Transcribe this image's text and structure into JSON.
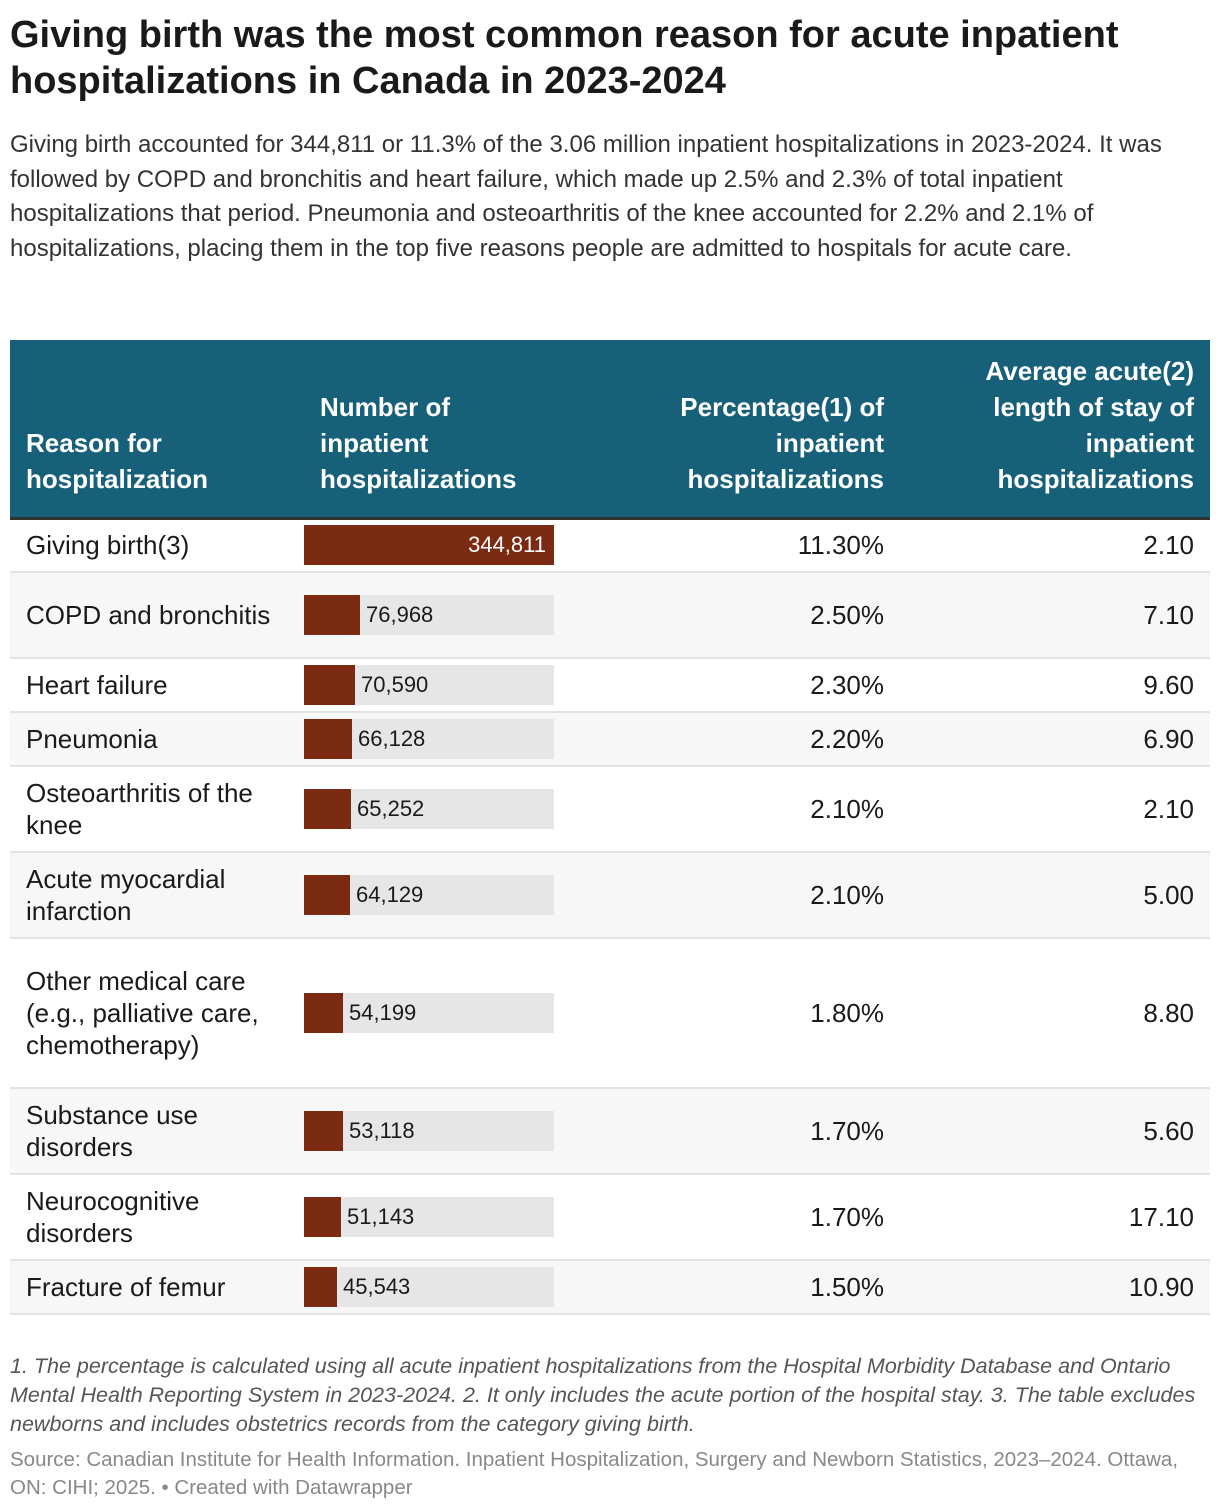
{
  "title": "Giving birth was the most common reason for acute inpatient hospitalizations in Canada in 2023-2024",
  "subtitle": "Giving birth accounted for 344,811 or 11.3% of the 3.06 million inpatient hospitalizations in 2023-2024. It was followed by COPD and bronchitis and heart failure, which made up 2.5% and 2.3% of total inpatient hospitalizations that period. Pneumonia and osteoarthritis of the knee accounted for 2.2% and 2.1% of hospitalizations, placing them in the top five reasons people are admitted to hospitals for acute care.",
  "columns": {
    "reason": "Reason for hospitalization",
    "number": "Number of inpatient hospitalizations",
    "percentage": "Percentage(1) of inpatient hospitalizations",
    "stay": "Average acute(2) length of stay of inpatient hospitalizations"
  },
  "colors": {
    "header_bg": "#17607a",
    "bar": "#7b2b12",
    "track": "#e6e6e6"
  },
  "chart_data": {
    "type": "table",
    "title": "Giving birth was the most common reason for acute inpatient hospitalizations in Canada in 2023-2024",
    "bar_max": 344811,
    "rows": [
      {
        "reason": "Giving birth(3)",
        "number": 344811,
        "number_label": "344,811",
        "percentage": "11.30%",
        "stay": "2.10"
      },
      {
        "reason": "COPD and bronchitis",
        "number": 76968,
        "number_label": "76,968",
        "percentage": "2.50%",
        "stay": "7.10"
      },
      {
        "reason": "Heart failure",
        "number": 70590,
        "number_label": "70,590",
        "percentage": "2.30%",
        "stay": "9.60"
      },
      {
        "reason": "Pneumonia",
        "number": 66128,
        "number_label": "66,128",
        "percentage": "2.20%",
        "stay": "6.90"
      },
      {
        "reason": "Osteoarthritis of the knee",
        "number": 65252,
        "number_label": "65,252",
        "percentage": "2.10%",
        "stay": "2.10"
      },
      {
        "reason": "Acute myocardial infarction",
        "number": 64129,
        "number_label": "64,129",
        "percentage": "2.10%",
        "stay": "5.00"
      },
      {
        "reason": "Other medical care (e.g., palliative care, chemotherapy)",
        "number": 54199,
        "number_label": "54,199",
        "percentage": "1.80%",
        "stay": "8.80"
      },
      {
        "reason": "Substance use disorders",
        "number": 53118,
        "number_label": "53,118",
        "percentage": "1.70%",
        "stay": "5.60"
      },
      {
        "reason": "Neurocognitive disorders",
        "number": 51143,
        "number_label": "51,143",
        "percentage": "1.70%",
        "stay": "17.10"
      },
      {
        "reason": "Fracture of femur",
        "number": 45543,
        "number_label": "45,543",
        "percentage": "1.50%",
        "stay": "10.90"
      }
    ]
  },
  "notes": "1. The percentage is calculated using all acute inpatient hospitalizations from the Hospital Morbidity Database and Ontario Mental Health Reporting System in 2023-2024. 2. It only includes the acute portion of the hospital stay. 3. The table excludes newborns and includes obstetrics records from the category giving birth.",
  "source": "Source: Canadian Institute for Health Information. Inpatient Hospitalization, Surgery and Newborn Statistics, 2023–2024. Ottawa, ON: CIHI; 2025. • Created with Datawrapper"
}
